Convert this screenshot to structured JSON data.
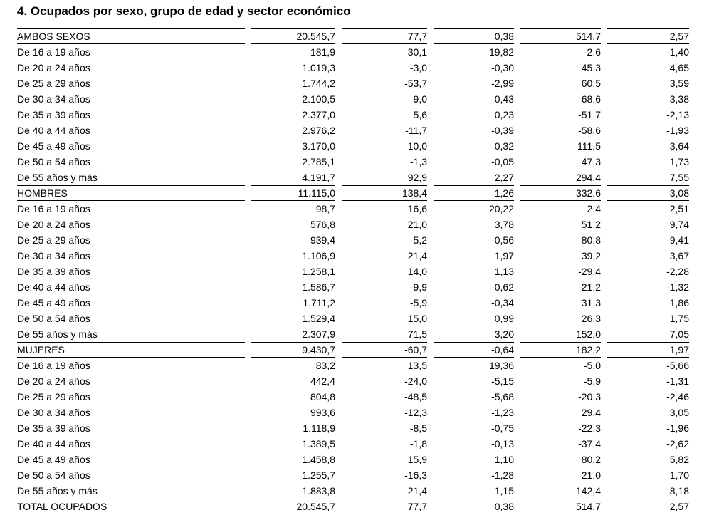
{
  "page": {
    "title": "4. Ocupados por sexo, grupo de edad y sector económico"
  },
  "colors": {
    "text": "#000000",
    "rule": "#000000",
    "background": "#ffffff"
  },
  "table": {
    "rows": [
      {
        "label": "AMBOS SEXOS",
        "type": "section",
        "values": [
          "20.545,7",
          "77,7",
          "0,38",
          "514,7",
          "2,57"
        ]
      },
      {
        "label": "De 16 a 19 años",
        "type": "data",
        "values": [
          "181,9",
          "30,1",
          "19,82",
          "-2,6",
          "-1,40"
        ]
      },
      {
        "label": "De 20 a 24 años",
        "type": "data",
        "values": [
          "1.019,3",
          "-3,0",
          "-0,30",
          "45,3",
          "4,65"
        ]
      },
      {
        "label": "De 25 a 29 años",
        "type": "data",
        "values": [
          "1.744,2",
          "-53,7",
          "-2,99",
          "60,5",
          "3,59"
        ]
      },
      {
        "label": "De 30 a 34 años",
        "type": "data",
        "values": [
          "2.100,5",
          "9,0",
          "0,43",
          "68,6",
          "3,38"
        ]
      },
      {
        "label": "De 35 a 39 años",
        "type": "data",
        "values": [
          "2.377,0",
          "5,6",
          "0,23",
          "-51,7",
          "-2,13"
        ]
      },
      {
        "label": "De 40 a 44 años",
        "type": "data",
        "values": [
          "2.976,2",
          "-11,7",
          "-0,39",
          "-58,6",
          "-1,93"
        ]
      },
      {
        "label": "De 45 a 49 años",
        "type": "data",
        "values": [
          "3.170,0",
          "10,0",
          "0,32",
          "111,5",
          "3,64"
        ]
      },
      {
        "label": "De 50 a 54 años",
        "type": "data",
        "values": [
          "2.785,1",
          "-1,3",
          "-0,05",
          "47,3",
          "1,73"
        ]
      },
      {
        "label": "De 55 años y más",
        "type": "data",
        "values": [
          "4.191,7",
          "92,9",
          "2,27",
          "294,4",
          "7,55"
        ]
      },
      {
        "label": "HOMBRES",
        "type": "section",
        "values": [
          "11.115,0",
          "138,4",
          "1,26",
          "332,6",
          "3,08"
        ]
      },
      {
        "label": "De 16 a 19 años",
        "type": "data",
        "values": [
          "98,7",
          "16,6",
          "20,22",
          "2,4",
          "2,51"
        ]
      },
      {
        "label": "De 20 a 24 años",
        "type": "data",
        "values": [
          "576,8",
          "21,0",
          "3,78",
          "51,2",
          "9,74"
        ]
      },
      {
        "label": "De 25 a 29 años",
        "type": "data",
        "values": [
          "939,4",
          "-5,2",
          "-0,56",
          "80,8",
          "9,41"
        ]
      },
      {
        "label": "De 30 a 34 años",
        "type": "data",
        "values": [
          "1.106,9",
          "21,4",
          "1,97",
          "39,2",
          "3,67"
        ]
      },
      {
        "label": "De 35 a 39 años",
        "type": "data",
        "values": [
          "1.258,1",
          "14,0",
          "1,13",
          "-29,4",
          "-2,28"
        ]
      },
      {
        "label": "De 40 a 44 años",
        "type": "data",
        "values": [
          "1.586,7",
          "-9,9",
          "-0,62",
          "-21,2",
          "-1,32"
        ]
      },
      {
        "label": "De 45 a 49 años",
        "type": "data",
        "values": [
          "1.711,2",
          "-5,9",
          "-0,34",
          "31,3",
          "1,86"
        ]
      },
      {
        "label": "De 50 a 54 años",
        "type": "data",
        "values": [
          "1.529,4",
          "15,0",
          "0,99",
          "26,3",
          "1,75"
        ]
      },
      {
        "label": "De 55 años y más",
        "type": "data",
        "values": [
          "2.307,9",
          "71,5",
          "3,20",
          "152,0",
          "7,05"
        ]
      },
      {
        "label": "MUJERES",
        "type": "section",
        "values": [
          "9.430,7",
          "-60,7",
          "-0,64",
          "182,2",
          "1,97"
        ]
      },
      {
        "label": "De 16 a 19 años",
        "type": "data",
        "values": [
          "83,2",
          "13,5",
          "19,36",
          "-5,0",
          "-5,66"
        ]
      },
      {
        "label": "De 20 a 24 años",
        "type": "data",
        "values": [
          "442,4",
          "-24,0",
          "-5,15",
          "-5,9",
          "-1,31"
        ]
      },
      {
        "label": "De 25 a 29 años",
        "type": "data",
        "values": [
          "804,8",
          "-48,5",
          "-5,68",
          "-20,3",
          "-2,46"
        ]
      },
      {
        "label": "De 30 a 34 años",
        "type": "data",
        "values": [
          "993,6",
          "-12,3",
          "-1,23",
          "29,4",
          "3,05"
        ]
      },
      {
        "label": "De 35 a 39 años",
        "type": "data",
        "values": [
          "1.118,9",
          "-8,5",
          "-0,75",
          "-22,3",
          "-1,96"
        ]
      },
      {
        "label": "De 40 a 44 años",
        "type": "data",
        "values": [
          "1.389,5",
          "-1,8",
          "-0,13",
          "-37,4",
          "-2,62"
        ]
      },
      {
        "label": "De 45 a 49 años",
        "type": "data",
        "values": [
          "1.458,8",
          "15,9",
          "1,10",
          "80,2",
          "5,82"
        ]
      },
      {
        "label": "De 50 a 54 años",
        "type": "data",
        "values": [
          "1.255,7",
          "-16,3",
          "-1,28",
          "21,0",
          "1,70"
        ]
      },
      {
        "label": "De 55 años y más",
        "type": "data",
        "values": [
          "1.883,8",
          "21,4",
          "1,15",
          "142,4",
          "8,18"
        ]
      },
      {
        "label": "TOTAL OCUPADOS",
        "type": "section",
        "values": [
          "20.545,7",
          "77,7",
          "0,38",
          "514,7",
          "2,57"
        ]
      }
    ]
  }
}
